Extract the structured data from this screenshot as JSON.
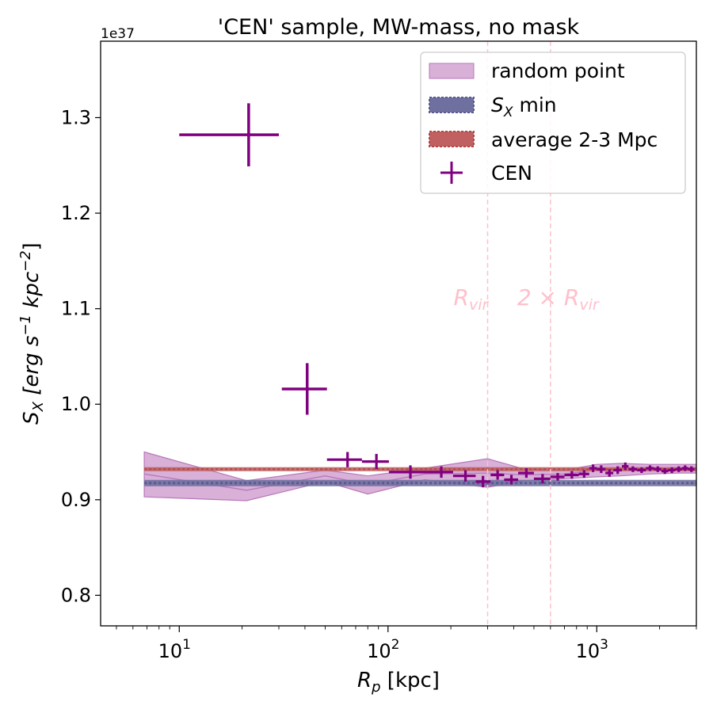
{
  "chart_data": {
    "type": "scatter",
    "title": "'CEN' sample, MW-mass, no mask",
    "xlabel": "R_p [kpc]",
    "xlabel_parts": [
      "R",
      "p",
      " [kpc]"
    ],
    "ylabel_parts": [
      "S",
      "X",
      " [erg s",
      "−1",
      " kpc",
      "−2",
      "]"
    ],
    "y_offset_text": "1e37",
    "xscale": "log",
    "xlim": [
      4.2,
      3000
    ],
    "ylim": [
      0.768,
      1.38
    ],
    "y_ticks": [
      0.8,
      0.9,
      1.0,
      1.1,
      1.2,
      1.3
    ],
    "y_tick_labels": [
      "0.8",
      "0.9",
      "1.0",
      "1.1",
      "1.2",
      "1.3"
    ],
    "x_major_ticks": [
      10,
      100,
      1000
    ],
    "x_major_tick_labels": [
      {
        "base": "10",
        "exp": "1"
      },
      {
        "base": "10",
        "exp": "2"
      },
      {
        "base": "10",
        "exp": "3"
      }
    ],
    "colors": {
      "cen": "#800080",
      "random_fill": "#d8b0d8",
      "random_edge": "#b878b8",
      "sx_min": "#7070a0",
      "avg": "#c06060",
      "vline": "#ffc0cb"
    },
    "legend": {
      "position": "upper right",
      "entries": [
        {
          "key": "random",
          "label": "random point"
        },
        {
          "key": "sxmin",
          "label_parts": [
            "S",
            "X",
            " min"
          ]
        },
        {
          "key": "avg",
          "label": "average 2-3 Mpc"
        },
        {
          "key": "cen",
          "label": "CEN"
        }
      ]
    },
    "vlines": [
      {
        "x": 300,
        "label_parts": [
          "R",
          "vir"
        ]
      },
      {
        "x": 600,
        "label_parts": [
          "2 × R",
          "vir"
        ]
      }
    ],
    "hbands": {
      "sx_min": 0.9175,
      "average_2_3_mpc": 0.932
    },
    "random_band": {
      "x": [
        6.8,
        21,
        50,
        80,
        150,
        300,
        450,
        700,
        1000,
        1300,
        1800,
        2500,
        3000
      ],
      "lower": [
        0.903,
        0.899,
        0.919,
        0.906,
        0.921,
        0.913,
        0.92,
        0.922,
        0.924,
        0.925,
        0.927,
        0.928,
        0.928
      ],
      "upper": [
        0.95,
        0.92,
        0.931,
        0.925,
        0.933,
        0.943,
        0.932,
        0.931,
        0.937,
        0.938,
        0.937,
        0.937,
        0.937
      ],
      "median": [
        0.927,
        0.91,
        0.925,
        0.916,
        0.927,
        0.928,
        0.926,
        0.927,
        0.931,
        0.932,
        0.932,
        0.933,
        0.932
      ]
    },
    "cen_series": {
      "name": "CEN",
      "points": [
        {
          "x": 21.5,
          "y": 1.282,
          "xlo": 10.0,
          "xhi": 30.0,
          "yerr": 0.033
        },
        {
          "x": 41.0,
          "y": 1.016,
          "xlo": 31.0,
          "xhi": 51.0,
          "yerr": 0.027
        },
        {
          "x": 64.0,
          "y": 0.942,
          "xlo": 51.0,
          "xhi": 75.0,
          "yerr": 0.008
        },
        {
          "x": 88.0,
          "y": 0.94,
          "xlo": 75.0,
          "xhi": 101.0,
          "yerr": 0.008
        },
        {
          "x": 128.0,
          "y": 0.929,
          "xlo": 101.0,
          "xhi": 153.0,
          "yerr": 0.007
        },
        {
          "x": 180.0,
          "y": 0.929,
          "xlo": 153.0,
          "xhi": 205.0,
          "yerr": 0.006
        },
        {
          "x": 235.0,
          "y": 0.925,
          "xlo": 205.0,
          "xhi": 263.0,
          "yerr": 0.006
        },
        {
          "x": 285.0,
          "y": 0.919,
          "xlo": 263.0,
          "xhi": 310.0,
          "yerr": 0.006
        },
        {
          "x": 335.0,
          "y": 0.926,
          "xlo": 310.0,
          "xhi": 360.0,
          "yerr": 0.005
        },
        {
          "x": 390.0,
          "y": 0.921,
          "xlo": 360.0,
          "xhi": 420.0,
          "yerr": 0.005
        },
        {
          "x": 460.0,
          "y": 0.928,
          "xlo": 420.0,
          "xhi": 500.0,
          "yerr": 0.005
        },
        {
          "x": 550.0,
          "y": 0.922,
          "xlo": 500.0,
          "xhi": 600.0,
          "yerr": 0.005
        },
        {
          "x": 650.0,
          "y": 0.924,
          "xlo": 600.0,
          "xhi": 700.0,
          "yerr": 0.004
        },
        {
          "x": 760.0,
          "y": 0.926,
          "xlo": 700.0,
          "xhi": 820.0,
          "yerr": 0.004
        },
        {
          "x": 870.0,
          "y": 0.927,
          "xlo": 820.0,
          "xhi": 920.0,
          "yerr": 0.004
        },
        {
          "x": 960.0,
          "y": 0.933,
          "xlo": 920.0,
          "xhi": 1000.0,
          "yerr": 0.004
        },
        {
          "x": 1050.0,
          "y": 0.932,
          "xlo": 1000.0,
          "xhi": 1100.0,
          "yerr": 0.004
        },
        {
          "x": 1150.0,
          "y": 0.928,
          "xlo": 1100.0,
          "xhi": 1200.0,
          "yerr": 0.004
        },
        {
          "x": 1260.0,
          "y": 0.931,
          "xlo": 1200.0,
          "xhi": 1320.0,
          "yerr": 0.004
        },
        {
          "x": 1370.0,
          "y": 0.935,
          "xlo": 1320.0,
          "xhi": 1420.0,
          "yerr": 0.004
        },
        {
          "x": 1490.0,
          "y": 0.932,
          "xlo": 1420.0,
          "xhi": 1560.0,
          "yerr": 0.003
        },
        {
          "x": 1640.0,
          "y": 0.931,
          "xlo": 1560.0,
          "xhi": 1720.0,
          "yerr": 0.003
        },
        {
          "x": 1800.0,
          "y": 0.933,
          "xlo": 1720.0,
          "xhi": 1880.0,
          "yerr": 0.003
        },
        {
          "x": 1960.0,
          "y": 0.932,
          "xlo": 1880.0,
          "xhi": 2040.0,
          "yerr": 0.003
        },
        {
          "x": 2120.0,
          "y": 0.93,
          "xlo": 2040.0,
          "xhi": 2200.0,
          "yerr": 0.003
        },
        {
          "x": 2290.0,
          "y": 0.931,
          "xlo": 2200.0,
          "xhi": 2380.0,
          "yerr": 0.003
        },
        {
          "x": 2470.0,
          "y": 0.932,
          "xlo": 2380.0,
          "xhi": 2560.0,
          "yerr": 0.003
        },
        {
          "x": 2650.0,
          "y": 0.933,
          "xlo": 2560.0,
          "xhi": 2740.0,
          "yerr": 0.003
        },
        {
          "x": 2840.0,
          "y": 0.932,
          "xlo": 2740.0,
          "xhi": 2940.0,
          "yerr": 0.003
        }
      ]
    }
  }
}
